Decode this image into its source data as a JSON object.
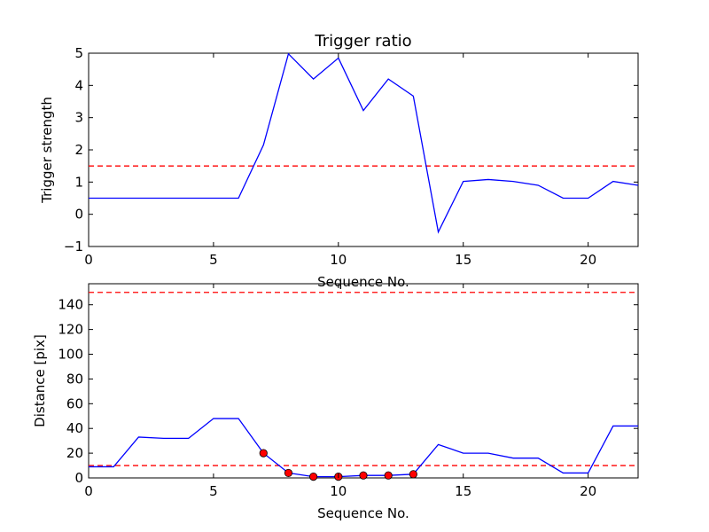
{
  "chart_data": [
    {
      "type": "line",
      "title": "Trigger ratio",
      "xlabel": "Sequence No.",
      "ylabel": "Trigger strength",
      "xlim": [
        0,
        22
      ],
      "ylim": [
        -1,
        5
      ],
      "xticks": [
        0,
        5,
        10,
        15,
        20
      ],
      "yticks": [
        -1,
        0,
        1,
        2,
        3,
        4,
        5
      ],
      "grid": false,
      "series": [
        {
          "color": "#0000ff",
          "x": [
            0,
            1,
            2,
            3,
            4,
            5,
            6,
            7,
            8,
            9,
            10,
            11,
            12,
            13,
            14,
            15,
            16,
            17,
            18,
            19,
            20,
            21,
            22
          ],
          "values": [
            0.5,
            0.5,
            0.5,
            0.5,
            0.5,
            0.5,
            0.5,
            2.15,
            4.98,
            4.2,
            4.85,
            3.22,
            4.2,
            3.67,
            -0.55,
            1.02,
            1.08,
            1.02,
            0.9,
            0.5,
            0.5,
            1.02,
            0.9
          ]
        }
      ],
      "hlines": [
        {
          "y": 1.5,
          "color": "#ff0000",
          "style": "dashed"
        }
      ]
    },
    {
      "type": "line",
      "title": "",
      "xlabel": "Sequence No.",
      "ylabel": "Distance [pix]",
      "xlim": [
        0,
        22
      ],
      "ylim": [
        0,
        157
      ],
      "xticks": [
        0,
        5,
        10,
        15,
        20
      ],
      "yticks": [
        0,
        20,
        40,
        60,
        80,
        100,
        120,
        140
      ],
      "grid": false,
      "series": [
        {
          "color": "#0000ff",
          "x": [
            0,
            1,
            2,
            3,
            4,
            5,
            6,
            7,
            8,
            9,
            10,
            11,
            12,
            13,
            14,
            15,
            16,
            17,
            18,
            19,
            20,
            21,
            22
          ],
          "values": [
            9,
            9,
            33,
            32,
            32,
            48,
            48,
            20,
            4,
            1,
            1,
            2,
            2,
            3,
            27,
            20,
            20,
            16,
            16,
            4,
            4,
            42,
            42
          ]
        }
      ],
      "markers": {
        "color": "#ff0000",
        "x": [
          7,
          8,
          9,
          10,
          11,
          12,
          13
        ],
        "values": [
          20,
          4,
          1,
          1,
          2,
          2,
          3
        ]
      },
      "hlines": [
        {
          "y": 150,
          "color": "#ff0000",
          "style": "dashed"
        },
        {
          "y": 10,
          "color": "#ff0000",
          "style": "dashed"
        }
      ]
    }
  ]
}
